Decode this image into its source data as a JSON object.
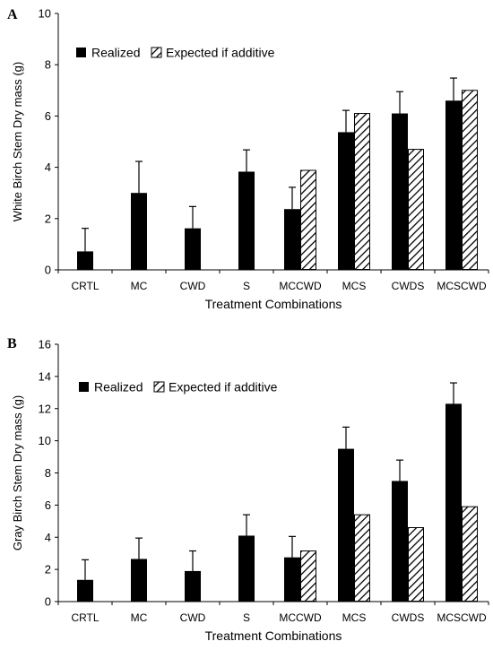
{
  "chart_data": [
    {
      "panel": "A",
      "type": "bar",
      "xlabel": "Treatment Combinations",
      "ylabel": "White Birch Stem Dry mass (g)",
      "ylim": [
        0,
        10
      ],
      "yticks": [
        0,
        2,
        4,
        6,
        8,
        10
      ],
      "grid": false,
      "legend_position": "top-left",
      "categories": [
        "CRTL",
        "MC",
        "CWD",
        "S",
        "MCCWD",
        "MCS",
        "CWDS",
        "MCSCWD"
      ],
      "series": [
        {
          "name": "Realized",
          "color": "#000000",
          "pattern": "solid",
          "values": [
            0.72,
            3.0,
            1.62,
            3.83,
            2.37,
            5.37,
            6.1,
            6.6
          ],
          "error": [
            0.9,
            1.23,
            0.85,
            0.85,
            0.85,
            0.85,
            0.85,
            0.88
          ]
        },
        {
          "name": "Expected if additive",
          "color": "#000000",
          "pattern": "hatched",
          "values": [
            null,
            null,
            null,
            null,
            3.88,
            6.1,
            4.7,
            7.0
          ],
          "error": [
            null,
            null,
            null,
            null,
            null,
            null,
            null,
            null
          ]
        }
      ]
    },
    {
      "panel": "B",
      "type": "bar",
      "xlabel": "Treatment Combinations",
      "ylabel": "Gray Birch Stem Dry mass (g)",
      "ylim": [
        0,
        16
      ],
      "yticks": [
        0,
        2,
        4,
        6,
        8,
        10,
        12,
        14,
        16
      ],
      "grid": false,
      "legend_position": "top-left",
      "categories": [
        "CRTL",
        "MC",
        "CWD",
        "S",
        "MCCWD",
        "MCS",
        "CWDS",
        "MCSCWD"
      ],
      "series": [
        {
          "name": "Realized",
          "color": "#000000",
          "pattern": "solid",
          "values": [
            1.35,
            2.65,
            1.9,
            4.1,
            2.75,
            9.5,
            7.5,
            12.3
          ],
          "error": [
            1.25,
            1.3,
            1.25,
            1.3,
            1.3,
            1.35,
            1.3,
            1.3
          ]
        },
        {
          "name": "Expected if additive",
          "color": "#000000",
          "pattern": "hatched",
          "values": [
            null,
            null,
            null,
            null,
            3.15,
            5.4,
            4.6,
            5.9
          ],
          "error": [
            null,
            null,
            null,
            null,
            null,
            null,
            null,
            null
          ]
        }
      ]
    }
  ]
}
